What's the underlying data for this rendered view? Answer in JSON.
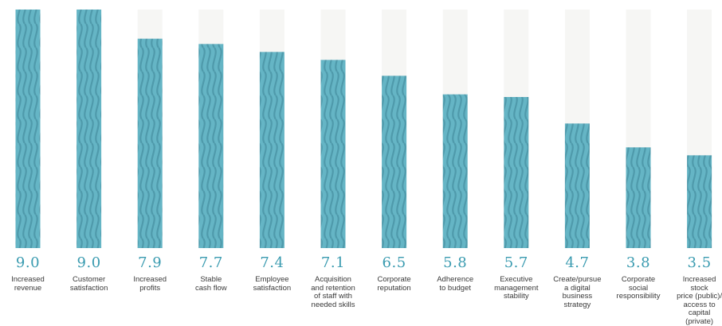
{
  "chart_data": {
    "type": "bar",
    "categories": [
      "Increased\nrevenue",
      "Customer\nsatisfaction",
      "Increased\nprofits",
      "Stable\ncash flow",
      "Employee\nsatisfaction",
      "Acquisition\nand retention\nof staff with\nneeded skills",
      "Corporate\nreputation",
      "Adherence\nto budget",
      "Executive\nmanagement\nstability",
      "Create/pursue\na digital\nbusiness\nstrategy",
      "Corporate\nsocial\nresponsibility",
      "Increased stock\nprice (public)/\naccess to capital\n(private)"
    ],
    "values": [
      9.0,
      9.0,
      7.9,
      7.7,
      7.4,
      7.1,
      6.5,
      5.8,
      5.7,
      4.7,
      3.8,
      3.5
    ],
    "value_labels": [
      "9.0",
      "9.0",
      "7.9",
      "7.7",
      "7.4",
      "7.1",
      "6.5",
      "5.8",
      "5.7",
      "4.7",
      "3.8",
      "3.5"
    ],
    "ylim": [
      0,
      9
    ],
    "grid": false,
    "legend": "none",
    "colors": {
      "bar": "#65b5c5",
      "bar_pattern": "#4f9aab",
      "track": "#f6f6f4",
      "value_text": "#3a9bb0",
      "label_text": "#3a3a3a"
    }
  }
}
